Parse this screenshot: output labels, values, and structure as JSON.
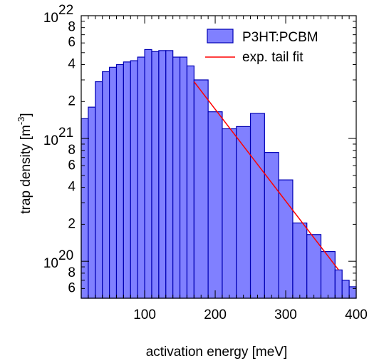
{
  "chart_data": {
    "type": "bar",
    "title": "",
    "xlabel": "activation energy [meV]",
    "ylabel": "trap density [m",
    "ylabel_sup": "-3",
    "ylabel_end": "]",
    "xscale": "linear",
    "yscale": "log",
    "xlim": [
      10,
      400
    ],
    "ylim": [
      5e+19,
      1e+22
    ],
    "grid": false,
    "legend_position": "top-right",
    "bin_width": 10,
    "bins": [
      {
        "x0": 10,
        "x1": 20,
        "value": 1.45e+21
      },
      {
        "x0": 20,
        "x1": 30,
        "value": 1.8e+21
      },
      {
        "x0": 30,
        "x1": 40,
        "value": 2.9e+21
      },
      {
        "x0": 40,
        "x1": 50,
        "value": 3.5e+21
      },
      {
        "x0": 50,
        "x1": 60,
        "value": 3.8e+21
      },
      {
        "x0": 60,
        "x1": 70,
        "value": 4e+21
      },
      {
        "x0": 70,
        "x1": 80,
        "value": 4.2e+21
      },
      {
        "x0": 80,
        "x1": 90,
        "value": 4.3e+21
      },
      {
        "x0": 90,
        "x1": 100,
        "value": 4.6e+21
      },
      {
        "x0": 100,
        "x1": 110,
        "value": 5.3e+21
      },
      {
        "x0": 110,
        "x1": 120,
        "value": 5.1e+21
      },
      {
        "x0": 120,
        "x1": 130,
        "value": 5.2e+21
      },
      {
        "x0": 130,
        "x1": 140,
        "value": 5.2e+21
      },
      {
        "x0": 140,
        "x1": 150,
        "value": 4.6e+21
      },
      {
        "x0": 150,
        "x1": 160,
        "value": 4.6e+21
      },
      {
        "x0": 160,
        "x1": 170,
        "value": 3.9e+21
      },
      {
        "x0": 170,
        "x1": 190,
        "value": 3e+21
      },
      {
        "x0": 190,
        "x1": 210,
        "value": 1.65e+21
      },
      {
        "x0": 210,
        "x1": 230,
        "value": 1.2e+21
      },
      {
        "x0": 230,
        "x1": 250,
        "value": 1.25e+21
      },
      {
        "x0": 250,
        "x1": 270,
        "value": 1.6e+21
      },
      {
        "x0": 270,
        "x1": 290,
        "value": 7.7e+20
      },
      {
        "x0": 290,
        "x1": 310,
        "value": 4.6e+20
      },
      {
        "x0": 310,
        "x1": 330,
        "value": 2.05e+20
      },
      {
        "x0": 330,
        "x1": 350,
        "value": 1.65e+20
      },
      {
        "x0": 350,
        "x1": 370,
        "value": 1.2e+20
      },
      {
        "x0": 370,
        "x1": 380,
        "value": 8.5e+19
      },
      {
        "x0": 380,
        "x1": 390,
        "value": 7e+19
      },
      {
        "x0": 390,
        "x1": 400,
        "value": 6.2e+19
      }
    ],
    "fit": {
      "name": "exp. tail fit",
      "x": [
        170,
        375
      ],
      "y": [
        2.9e+21,
        8.5e+19
      ]
    },
    "series": [
      {
        "name": "P3HT:PCBM",
        "type": "bar"
      },
      {
        "name": "exp. tail fit",
        "type": "line"
      }
    ],
    "x_ticks": [
      100,
      200,
      300,
      400
    ],
    "x_tick_labels": [
      "100",
      "200",
      "300",
      "400"
    ],
    "y_major_ticks": [
      {
        "value": 1e+20,
        "base": "10",
        "exp": "20"
      },
      {
        "value": 1e+21,
        "base": "10",
        "exp": "21"
      },
      {
        "value": 1e+22,
        "base": "10",
        "exp": "22"
      }
    ],
    "y_minor_labels": [
      {
        "value": 6e+19,
        "label": "6"
      },
      {
        "value": 8e+19,
        "label": "8"
      },
      {
        "value": 2e+20,
        "label": "2"
      },
      {
        "value": 4e+20,
        "label": "4"
      },
      {
        "value": 6e+20,
        "label": "6"
      },
      {
        "value": 8e+20,
        "label": "8"
      },
      {
        "value": 2e+21,
        "label": "2"
      },
      {
        "value": 4e+21,
        "label": "4"
      },
      {
        "value": 6e+21,
        "label": "6"
      },
      {
        "value": 8e+21,
        "label": "8"
      }
    ],
    "colors": {
      "bar_fill": "#8080ff",
      "bar_edge": "#0000b4",
      "fit_line": "#ff0000",
      "axis": "#000000"
    }
  }
}
